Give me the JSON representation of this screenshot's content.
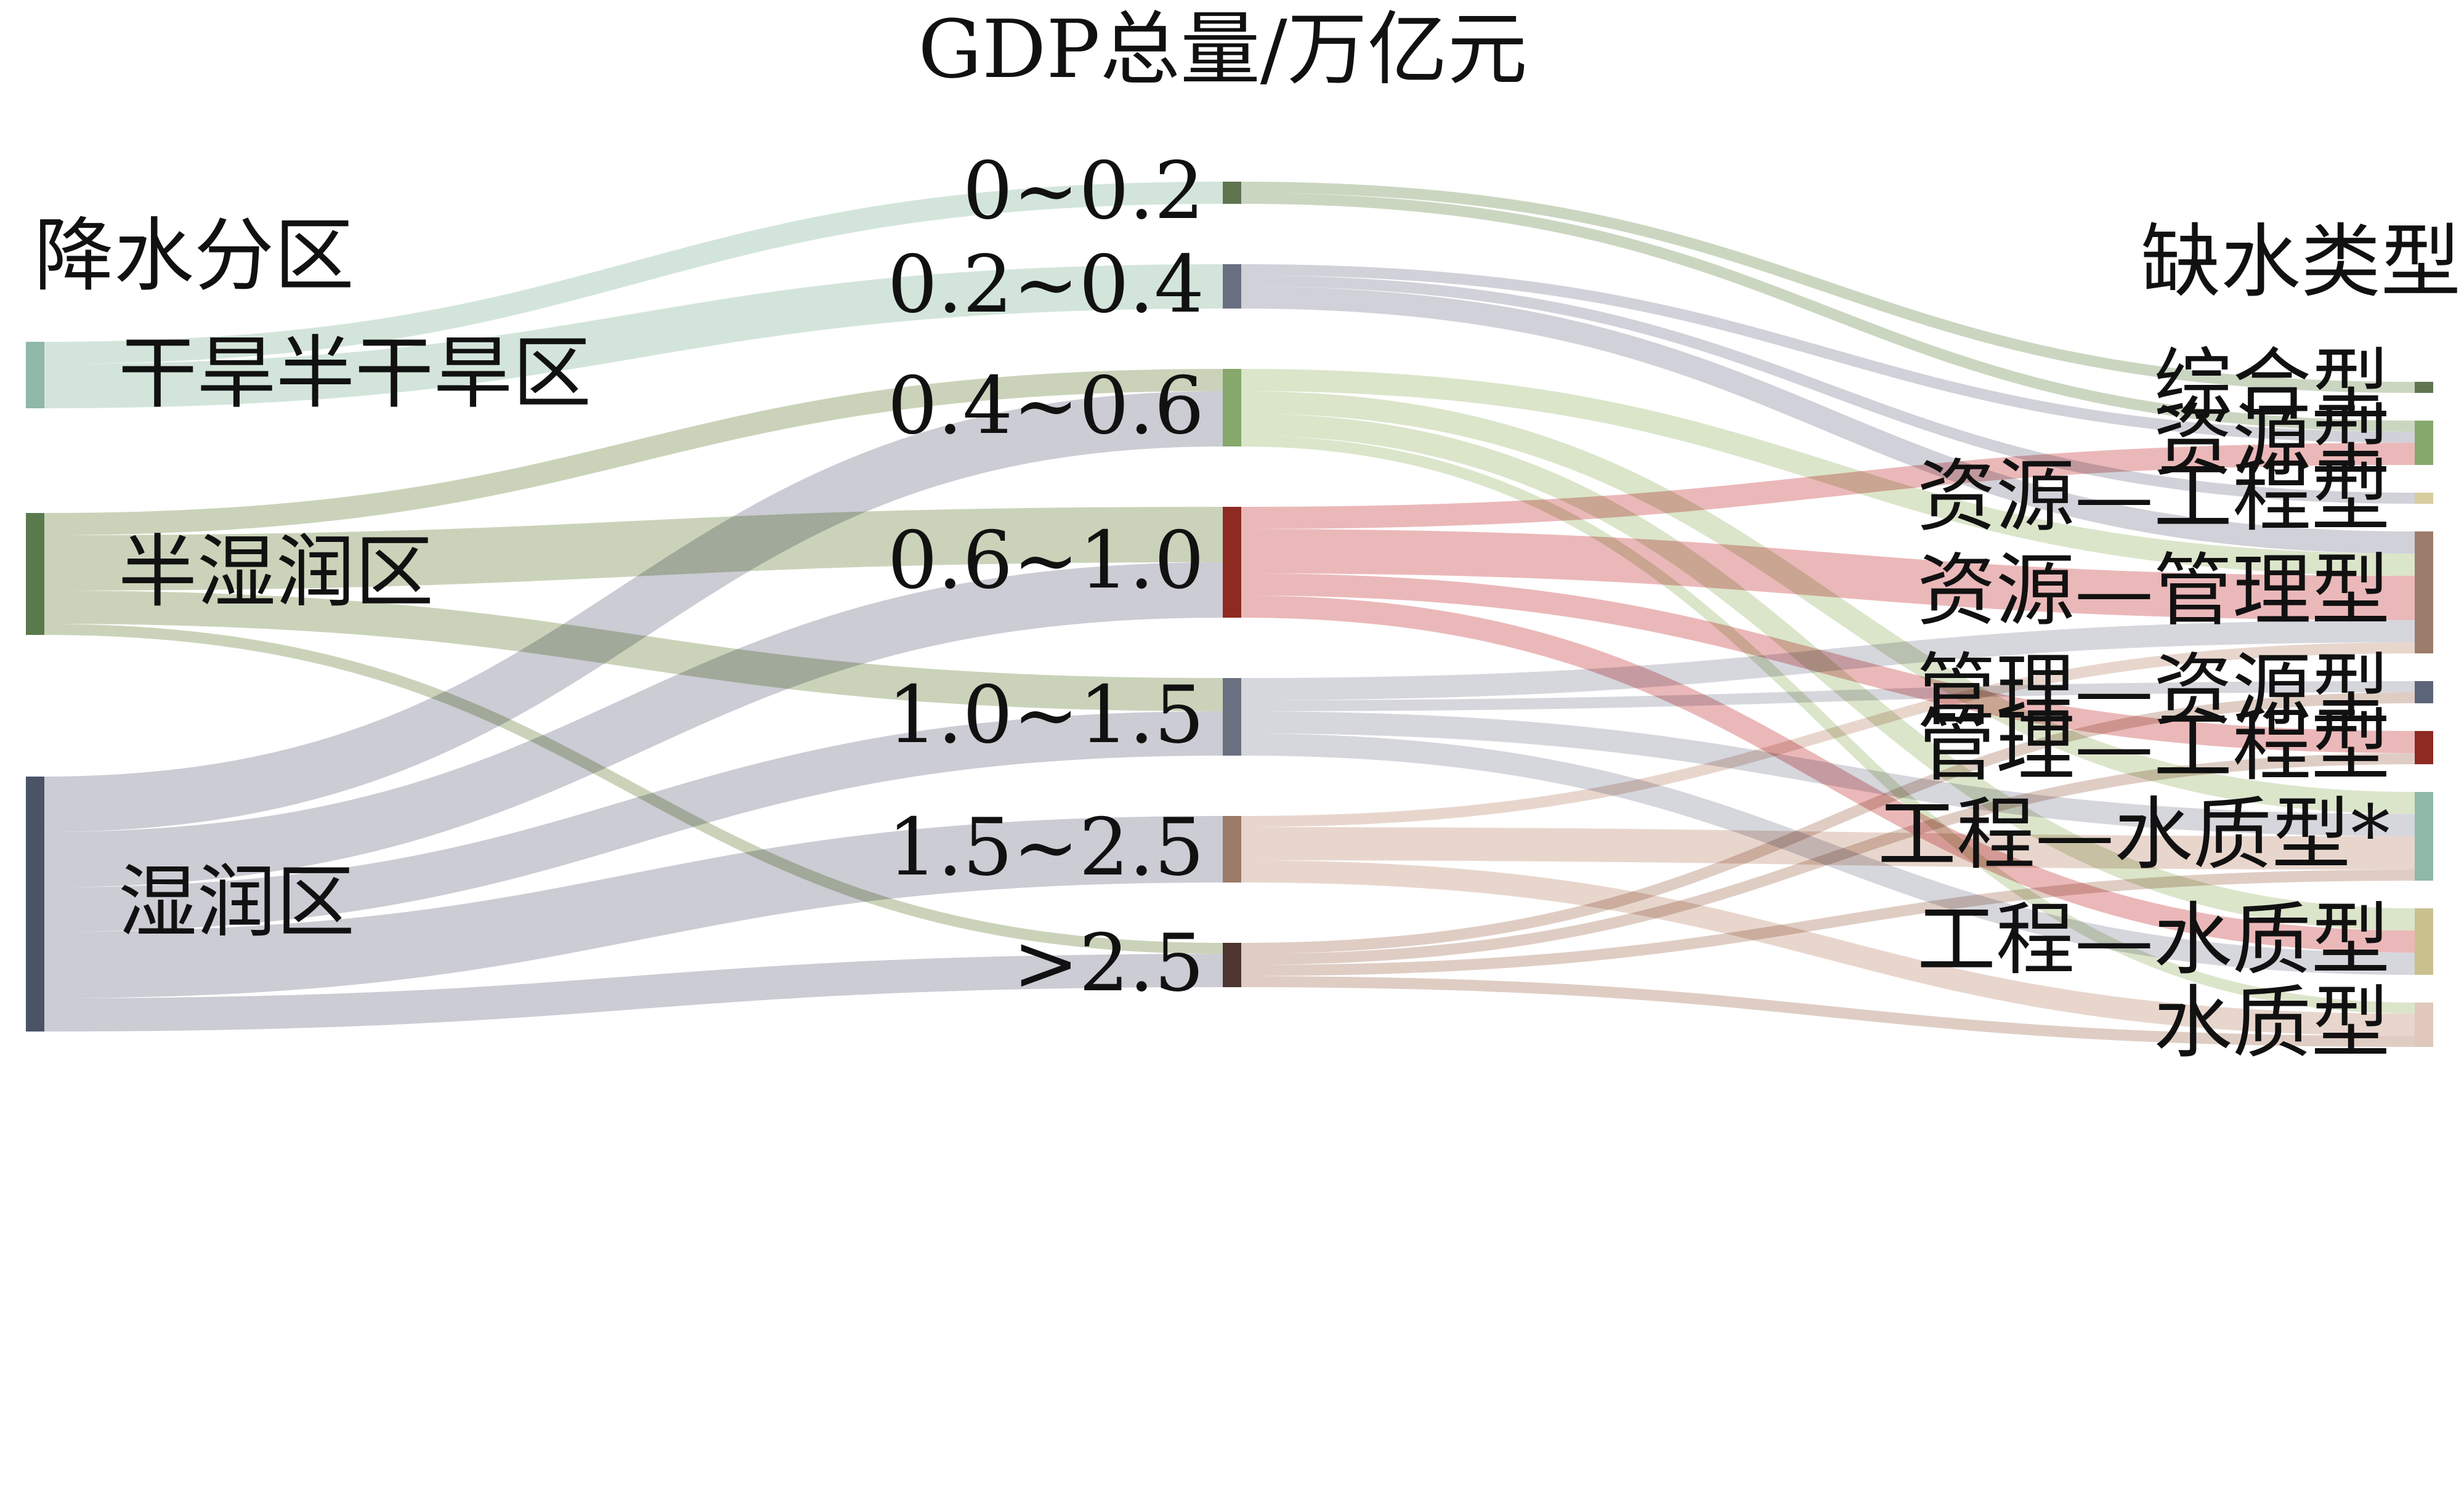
{
  "titles": {
    "gdp": "GDP总量/万亿元",
    "precip": "降水分区",
    "shortage": "缺水类型"
  },
  "precip_zones": [
    {
      "id": "arid",
      "label": "干旱半干旱区",
      "color": "#8fb8a8"
    },
    {
      "id": "subhumid",
      "label": "半湿润区",
      "color": "#5a7a4e"
    },
    {
      "id": "humid",
      "label": "湿润区",
      "color": "#4a5466"
    }
  ],
  "gdp_groups": [
    {
      "id": "g1",
      "label": "0~0.2",
      "color": "#5f7550",
      "link_color": "#b9c8ac"
    },
    {
      "id": "g2",
      "label": "0.2~0.4",
      "color": "#6a6f82",
      "link_color": "#c2c2cc"
    },
    {
      "id": "g3",
      "label": "0.4~0.6",
      "color": "#86a86c",
      "link_color": "#cfddb8"
    },
    {
      "id": "g4",
      "label": "0.6~1.0",
      "color": "#8e2a22",
      "link_color": "#e5a0a2"
    },
    {
      "id": "g5",
      "label": "1.0~1.5",
      "color": "#6b7180",
      "link_color": "#c8c9d2"
    },
    {
      "id": "g6",
      "label": "1.5~2.5",
      "color": "#9a7a68",
      "link_color": "#e0c8bc"
    },
    {
      "id": "g7",
      "label": ">2.5",
      "color": "#4e3630",
      "link_color": "#d4bcb0"
    }
  ],
  "shortage_types": [
    {
      "id": "t1",
      "label": "综合型",
      "color": "#5f7550"
    },
    {
      "id": "t2",
      "label": "资源型",
      "color": "#86a86c"
    },
    {
      "id": "t3",
      "label": "资源—工程型",
      "color": "#d6cc9e"
    },
    {
      "id": "t4",
      "label": "资源—管理型",
      "color": "#9c7c6a"
    },
    {
      "id": "t5",
      "label": "管理—资源型",
      "color": "#5b6478"
    },
    {
      "id": "t6",
      "label": "管理—工程型",
      "color": "#8e2a22"
    },
    {
      "id": "t7",
      "label": "工程—水质型*",
      "color": "#8fb8a8"
    },
    {
      "id": "t8",
      "label": "工程—水质型",
      "color": "#c9c08e"
    },
    {
      "id": "t9",
      "label": "水质型",
      "color": "#e0c8bc"
    }
  ],
  "chart_data": {
    "type": "sankey",
    "flows_precip_to_gdp": [
      {
        "source": "arid",
        "target": "g1",
        "value": 1
      },
      {
        "source": "arid",
        "target": "g2",
        "value": 2
      },
      {
        "source": "subhumid",
        "target": "g3",
        "value": 1
      },
      {
        "source": "subhumid",
        "target": "g4",
        "value": 2.5
      },
      {
        "source": "subhumid",
        "target": "g5",
        "value": 1.5
      },
      {
        "source": "subhumid",
        "target": "g7",
        "value": 0.5
      },
      {
        "source": "humid",
        "target": "g3",
        "value": 2.5
      },
      {
        "source": "humid",
        "target": "g4",
        "value": 2.5
      },
      {
        "source": "humid",
        "target": "g5",
        "value": 2
      },
      {
        "source": "humid",
        "target": "g6",
        "value": 3
      },
      {
        "source": "humid",
        "target": "g7",
        "value": 1.5
      }
    ],
    "flows_gdp_to_type": [
      {
        "source": "g1",
        "target": "t1",
        "value": 0.5
      },
      {
        "source": "g1",
        "target": "t2",
        "value": 0.5
      },
      {
        "source": "g2",
        "target": "t2",
        "value": 0.5
      },
      {
        "source": "g2",
        "target": "t3",
        "value": 0.5
      },
      {
        "source": "g2",
        "target": "t4",
        "value": 1
      },
      {
        "source": "g3",
        "target": "t4",
        "value": 1
      },
      {
        "source": "g3",
        "target": "t7",
        "value": 1
      },
      {
        "source": "g3",
        "target": "t8",
        "value": 1
      },
      {
        "source": "g3",
        "target": "t9",
        "value": 0.5
      },
      {
        "source": "g4",
        "target": "t2",
        "value": 1
      },
      {
        "source": "g4",
        "target": "t4",
        "value": 2
      },
      {
        "source": "g4",
        "target": "t6",
        "value": 1
      },
      {
        "source": "g4",
        "target": "t8",
        "value": 1
      },
      {
        "source": "g5",
        "target": "t4",
        "value": 1
      },
      {
        "source": "g5",
        "target": "t5",
        "value": 0.5
      },
      {
        "source": "g5",
        "target": "t7",
        "value": 1
      },
      {
        "source": "g5",
        "target": "t8",
        "value": 1
      },
      {
        "source": "g6",
        "target": "t4",
        "value": 0.5
      },
      {
        "source": "g6",
        "target": "t7",
        "value": 1.5
      },
      {
        "source": "g6",
        "target": "t9",
        "value": 1
      },
      {
        "source": "g7",
        "target": "t5",
        "value": 0.5
      },
      {
        "source": "g7",
        "target": "t6",
        "value": 0.5
      },
      {
        "source": "g7",
        "target": "t7",
        "value": 0.5
      },
      {
        "source": "g7",
        "target": "t9",
        "value": 0.5
      }
    ]
  }
}
